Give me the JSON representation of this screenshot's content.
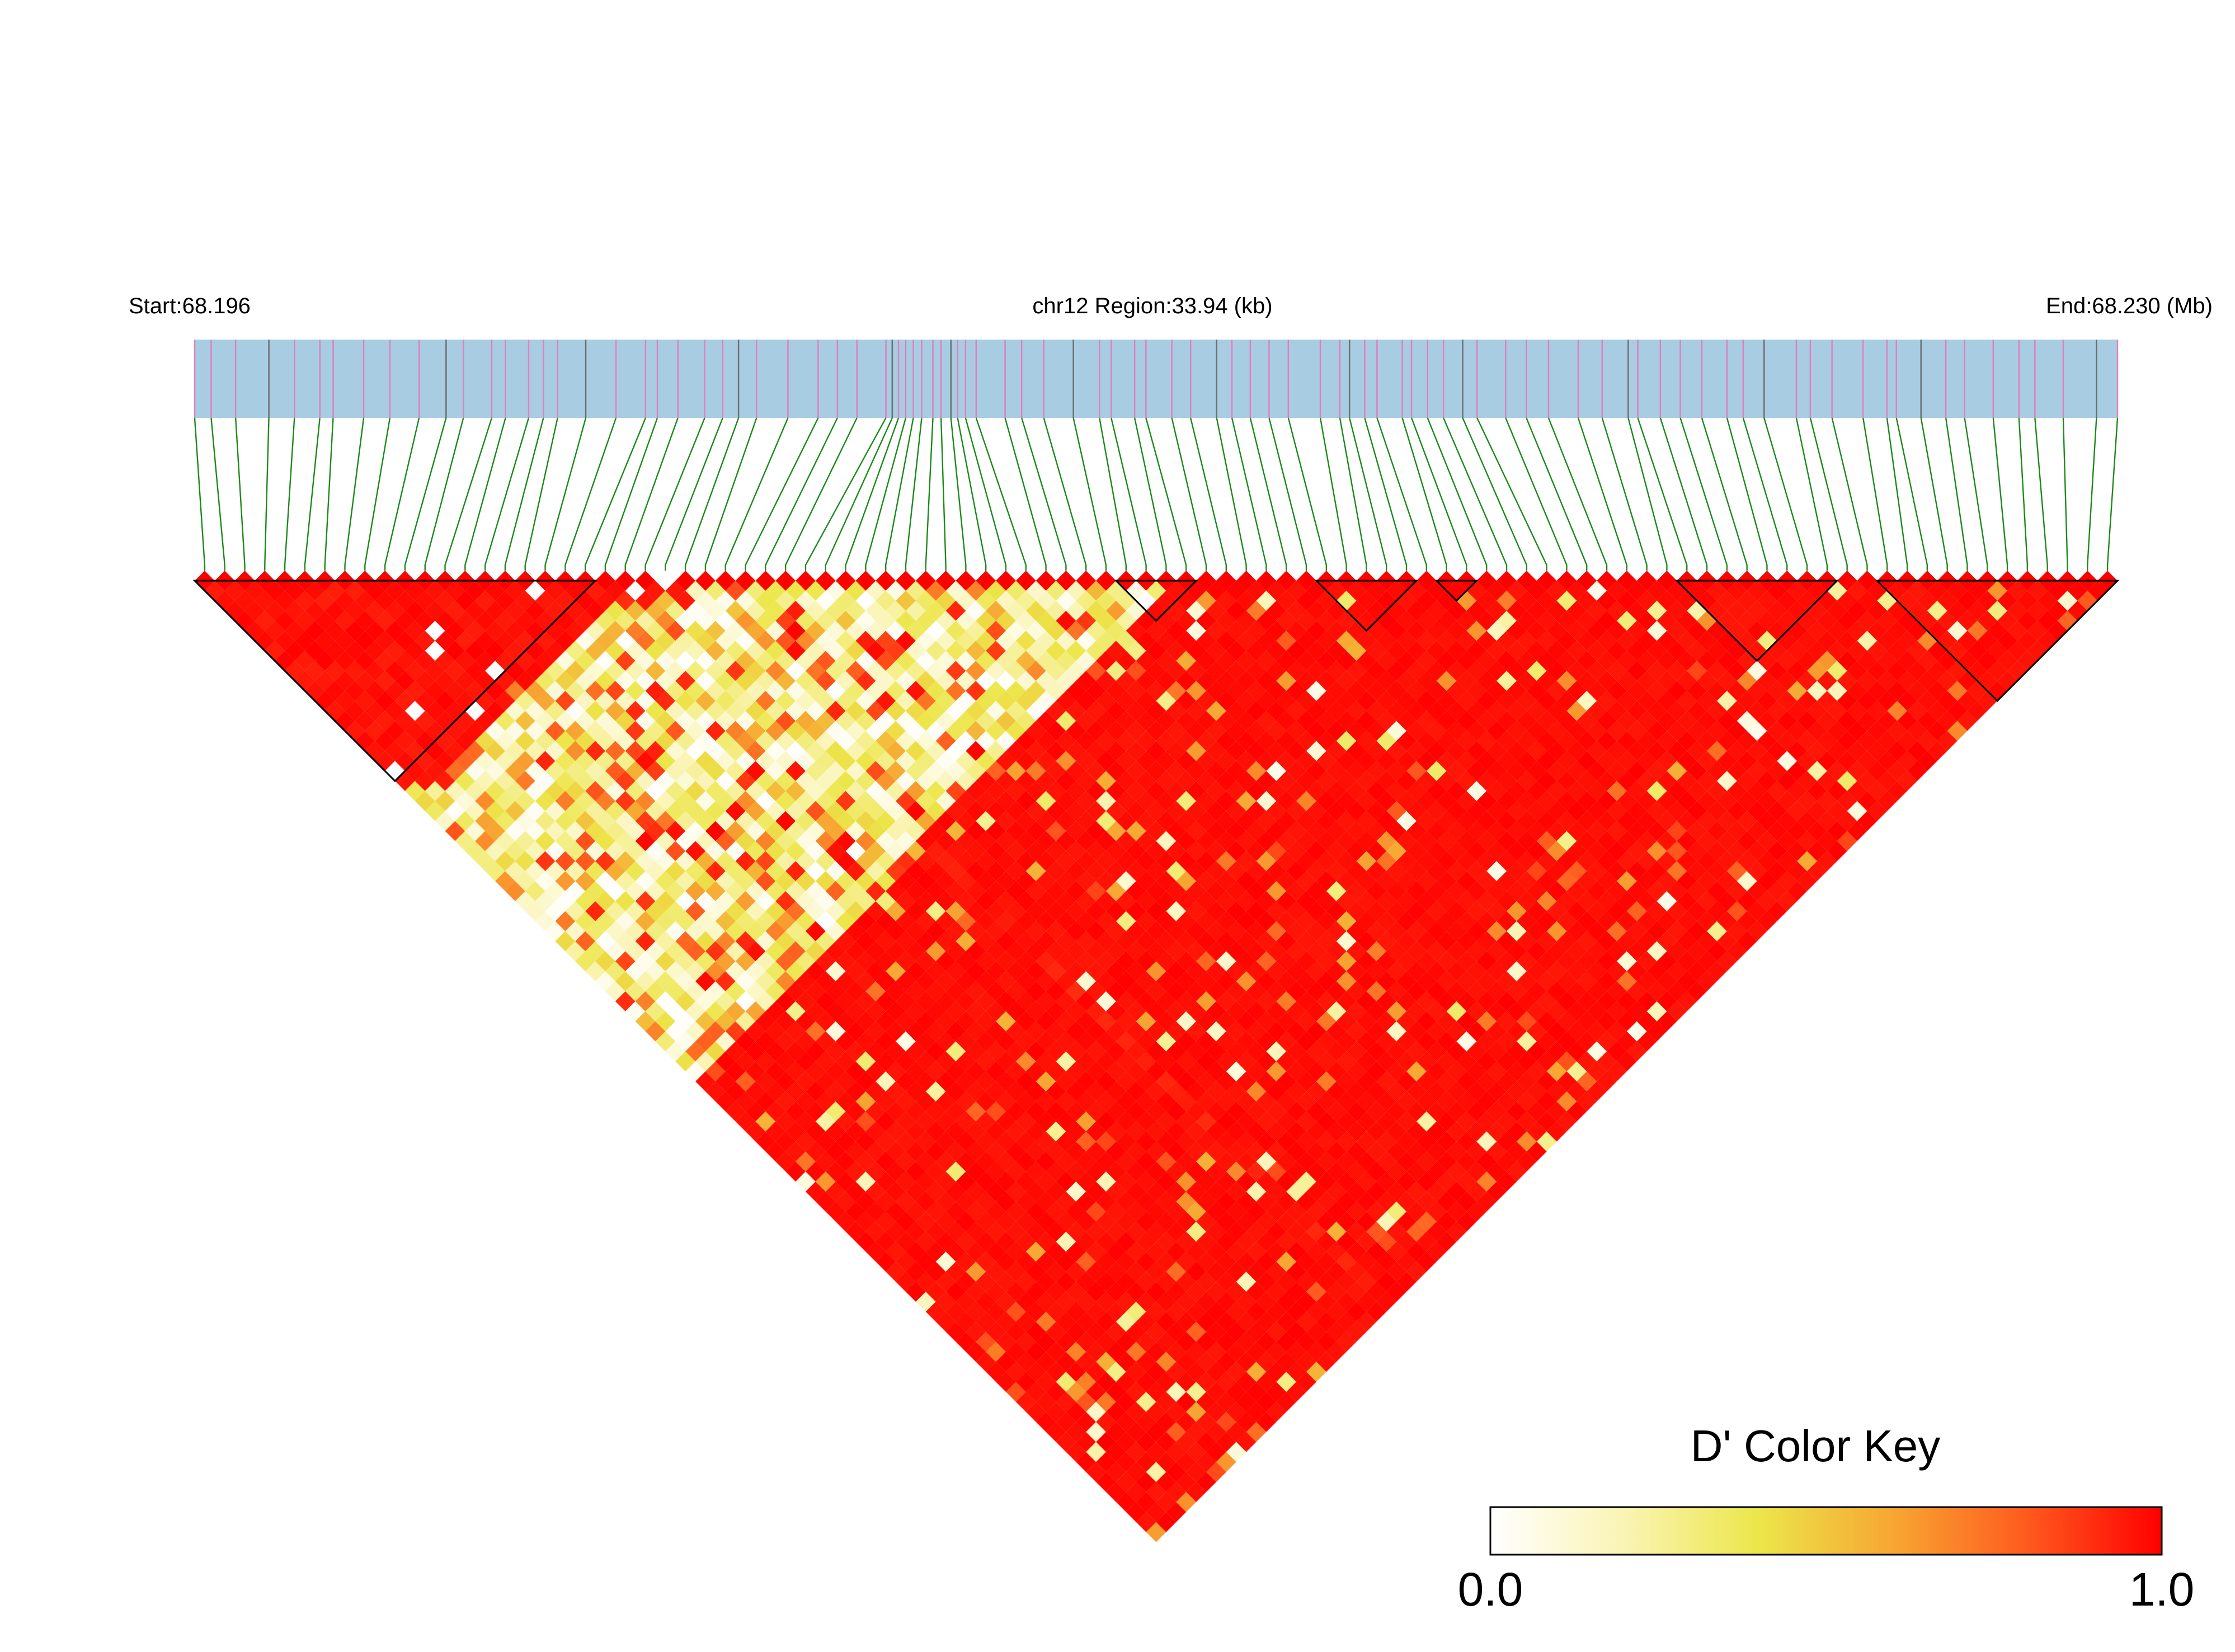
{
  "header": {
    "start_label": "Start:68.196",
    "region_label": "chr12 Region:33.94 (kb)",
    "end_label": "End:68.230 (Mb)"
  },
  "legend": {
    "title": "D' Color Key",
    "min_label": "0.0",
    "max_label": "1.0",
    "stops": [
      "#ffffff",
      "#faf4b4",
      "#ece64a",
      "#f7a632",
      "#ff5a1e",
      "#ff0000"
    ]
  },
  "colors": {
    "track_fill": "#a8cde2",
    "snp_line_pink": "#e07fc0",
    "snp_line_gray": "#6e6e6e",
    "connector": "#1a8a1a",
    "high_ld": "#ff0000",
    "block_outline": "#000000"
  },
  "chart_data": {
    "type": "heatmap",
    "description": "Linkage disequilibrium (D') triangle heatmap",
    "region": {
      "chromosome": "chr12",
      "start_mb": 68.196,
      "end_mb": 68.23,
      "length_kb": 33.94
    },
    "value_range": [
      0,
      1
    ],
    "n_snps": 96,
    "haplotype_blocks_snp_index": [
      [
        0,
        20
      ],
      [
        46,
        50
      ],
      [
        56,
        61
      ],
      [
        62,
        64
      ],
      [
        74,
        82
      ],
      [
        84,
        96
      ]
    ],
    "low_ld_region_snp_index": [
      [
        0,
        24
      ],
      [
        22,
        48
      ]
    ],
    "mid_gap_snp_index": 23
  }
}
